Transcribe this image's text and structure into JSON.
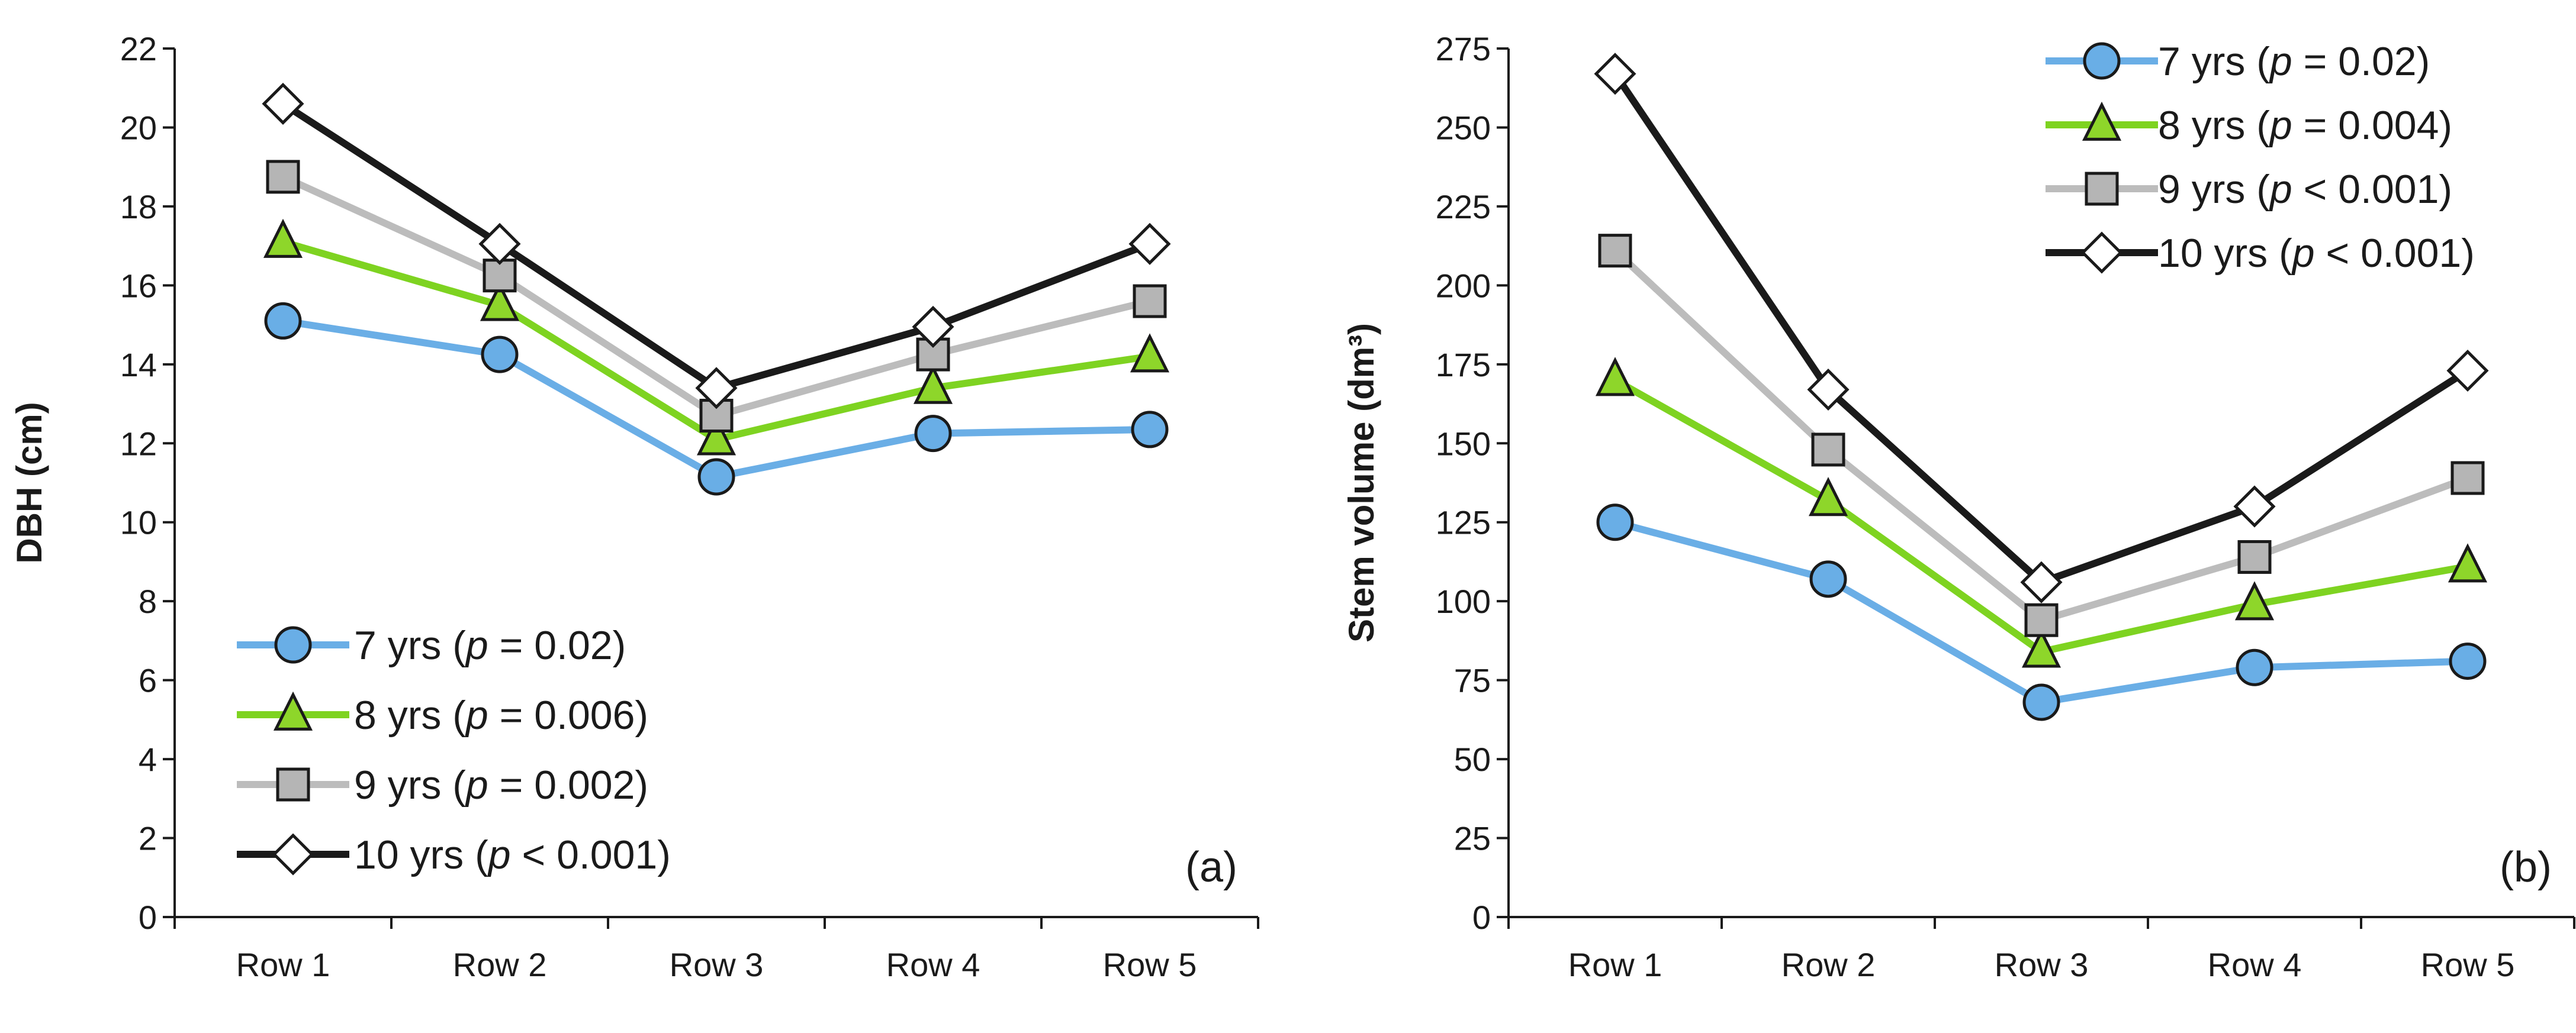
{
  "chart_data": [
    {
      "panel_label": "(a)",
      "type": "line",
      "ylabel": "DBH (cm)",
      "categories": [
        "Row 1",
        "Row 2",
        "Row 3",
        "Row 4",
        "Row 5"
      ],
      "ylim": [
        0,
        22
      ],
      "ytick_step": 2,
      "grid": false,
      "legend_placement": "bottom-left",
      "series": [
        {
          "name": "7 yrs",
          "p_value": "0.02",
          "p_op": "=",
          "color": "#6aaee6",
          "marker": "circle",
          "marker_fill": "#69aee6",
          "values": [
            15.1,
            14.25,
            11.15,
            12.25,
            12.35
          ]
        },
        {
          "name": "8 yrs",
          "p_value": "0.006",
          "p_op": "=",
          "color": "#7ed321",
          "marker": "triangle",
          "marker_fill": "#8ed62a",
          "values": [
            17.1,
            15.5,
            12.1,
            13.4,
            14.2
          ]
        },
        {
          "name": "9 yrs",
          "p_value": "0.002",
          "p_op": "=",
          "color": "#bcbcbc",
          "marker": "square",
          "marker_fill": "#b5b5b5",
          "values": [
            18.75,
            16.25,
            12.7,
            14.25,
            15.6
          ]
        },
        {
          "name": "10 yrs",
          "p_value": "0.001",
          "p_op": "<",
          "color": "#1a1a1a",
          "marker": "diamond",
          "marker_fill": "#ffffff",
          "values": [
            20.6,
            17.05,
            13.4,
            14.95,
            17.05
          ]
        }
      ]
    },
    {
      "panel_label": "(b)",
      "type": "line",
      "ylabel": "Stem volume (dm³)",
      "categories": [
        "Row 1",
        "Row 2",
        "Row 3",
        "Row 4",
        "Row 5"
      ],
      "ylim": [
        0,
        275
      ],
      "ytick_step": 25,
      "grid": false,
      "legend_placement": "top-right",
      "series": [
        {
          "name": "7 yrs",
          "p_value": "0.02",
          "p_op": "=",
          "color": "#6aaee6",
          "marker": "circle",
          "marker_fill": "#69aee6",
          "values": [
            125,
            107,
            68,
            79,
            81
          ]
        },
        {
          "name": "8 yrs",
          "p_value": "0.004",
          "p_op": "=",
          "color": "#7ed321",
          "marker": "triangle",
          "marker_fill": "#8ed62a",
          "values": [
            170,
            132,
            84,
            99,
            111
          ]
        },
        {
          "name": "9 yrs",
          "p_value": "0.001",
          "p_op": "<",
          "color": "#bcbcbc",
          "marker": "square",
          "marker_fill": "#b5b5b5",
          "values": [
            211,
            148,
            94,
            114,
            139
          ]
        },
        {
          "name": "10 yrs",
          "p_value": "0.001",
          "p_op": "<",
          "color": "#1a1a1a",
          "marker": "diamond",
          "marker_fill": "#ffffff",
          "values": [
            267,
            167,
            106,
            130,
            173
          ]
        }
      ]
    }
  ]
}
